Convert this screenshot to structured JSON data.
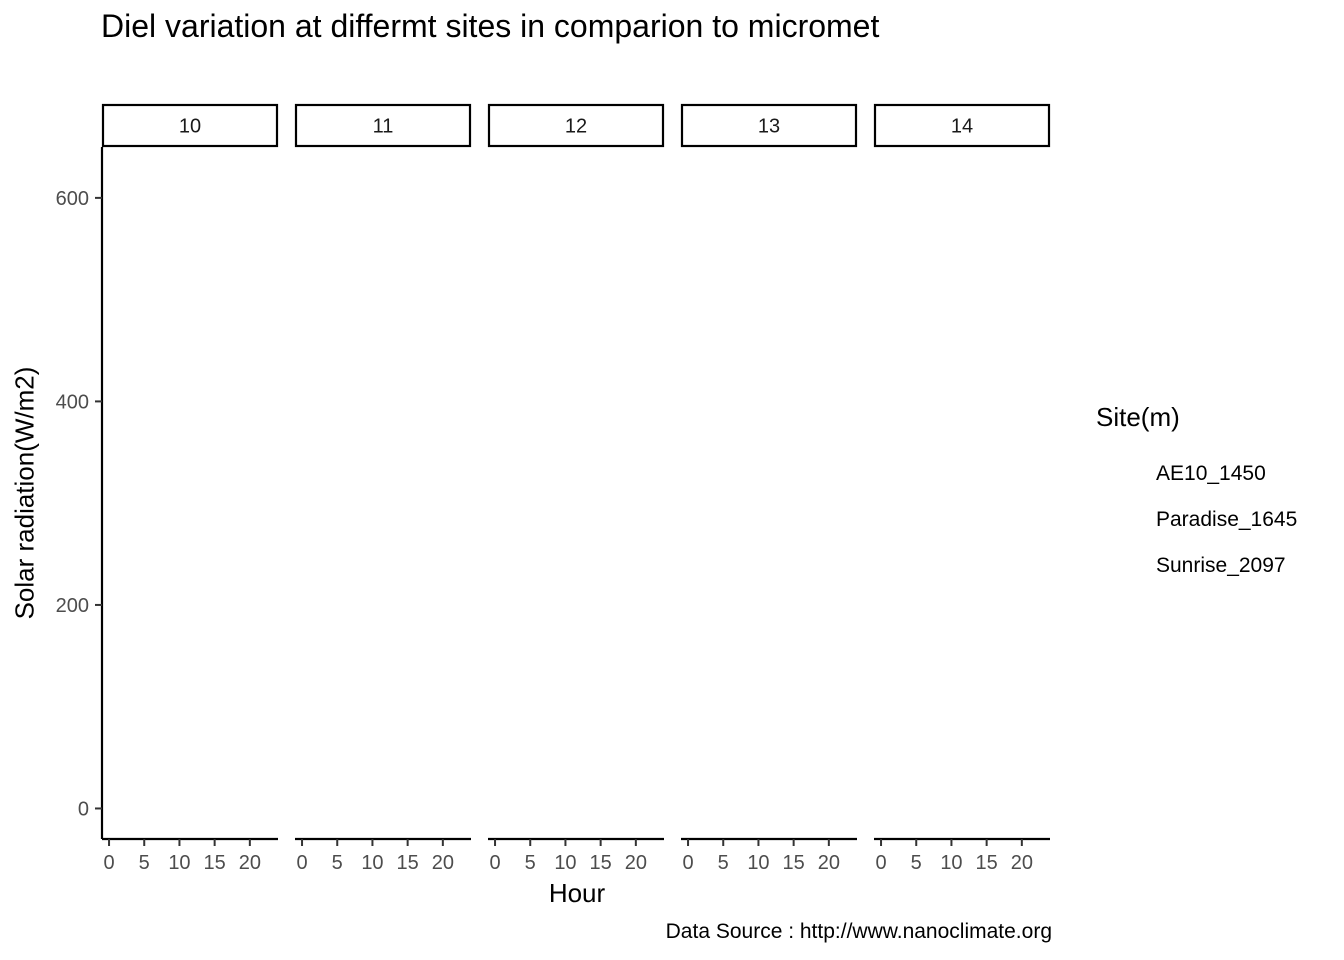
{
  "chart_data": {
    "type": "line",
    "title": "Diel variation at differmt sites in comparion to micromet",
    "xlabel": "Hour",
    "ylabel": "Solar radiation(W/m2)",
    "caption": "Data Source : http://www.nanoclimate.org",
    "facets": [
      "10",
      "11",
      "12",
      "13",
      "14"
    ],
    "x_ticks": [
      0,
      5,
      10,
      15,
      20
    ],
    "xlim": [
      -1,
      24
    ],
    "y_ticks": [
      0,
      200,
      400,
      600
    ],
    "ylim": [
      -30,
      650
    ],
    "grid": false,
    "legend": {
      "title": "Site(m)",
      "position": "right",
      "entries": [
        "AE10_1450",
        "Paradise_1645",
        "Sunrise_2097"
      ]
    },
    "series": [
      {
        "name": "AE10_1450",
        "x": [],
        "y": []
      },
      {
        "name": "Paradise_1645",
        "x": [],
        "y": []
      },
      {
        "name": "Sunrise_2097",
        "x": [],
        "y": []
      }
    ]
  }
}
